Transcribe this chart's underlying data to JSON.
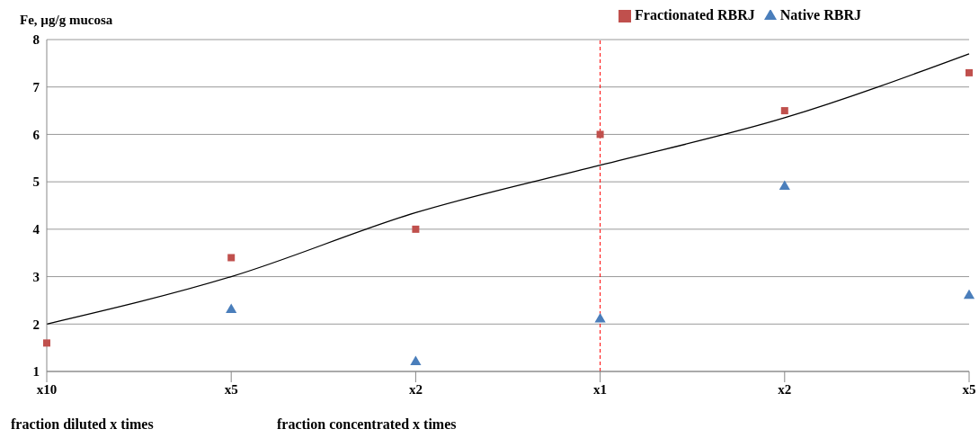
{
  "chart_data": {
    "type": "scatter",
    "ylabel": "Fe, µg/g mucosa",
    "categories": [
      "x10",
      "x5",
      "x2",
      "x1",
      "x2",
      "x5"
    ],
    "ylim": [
      1,
      8
    ],
    "yticks": [
      1,
      2,
      3,
      4,
      5,
      6,
      7,
      8
    ],
    "grid": "y",
    "legend": "top right",
    "series": [
      {
        "name": "Native RBRJ",
        "color": "#4a7ebb",
        "marker": "triangle",
        "values": [
          null,
          2.3,
          1.2,
          2.1,
          4.9,
          2.6
        ]
      },
      {
        "name": "Fractionated RBRJ",
        "color": "#c0504d",
        "marker": "square",
        "values": [
          1.6,
          3.4,
          4.0,
          6.0,
          6.5,
          7.3
        ]
      },
      {
        "type": "line",
        "color": "#000000",
        "marker": "none",
        "values": [
          2.0,
          3.0,
          4.35,
          5.35,
          6.35,
          7.7
        ]
      }
    ],
    "ref_lines": [
      {
        "axis": "x",
        "value": "x1",
        "color": "#ff0000",
        "line_style": "dashed"
      }
    ],
    "annotations": [
      "fraction diluted x times",
      "fraction concentrated x times"
    ]
  }
}
